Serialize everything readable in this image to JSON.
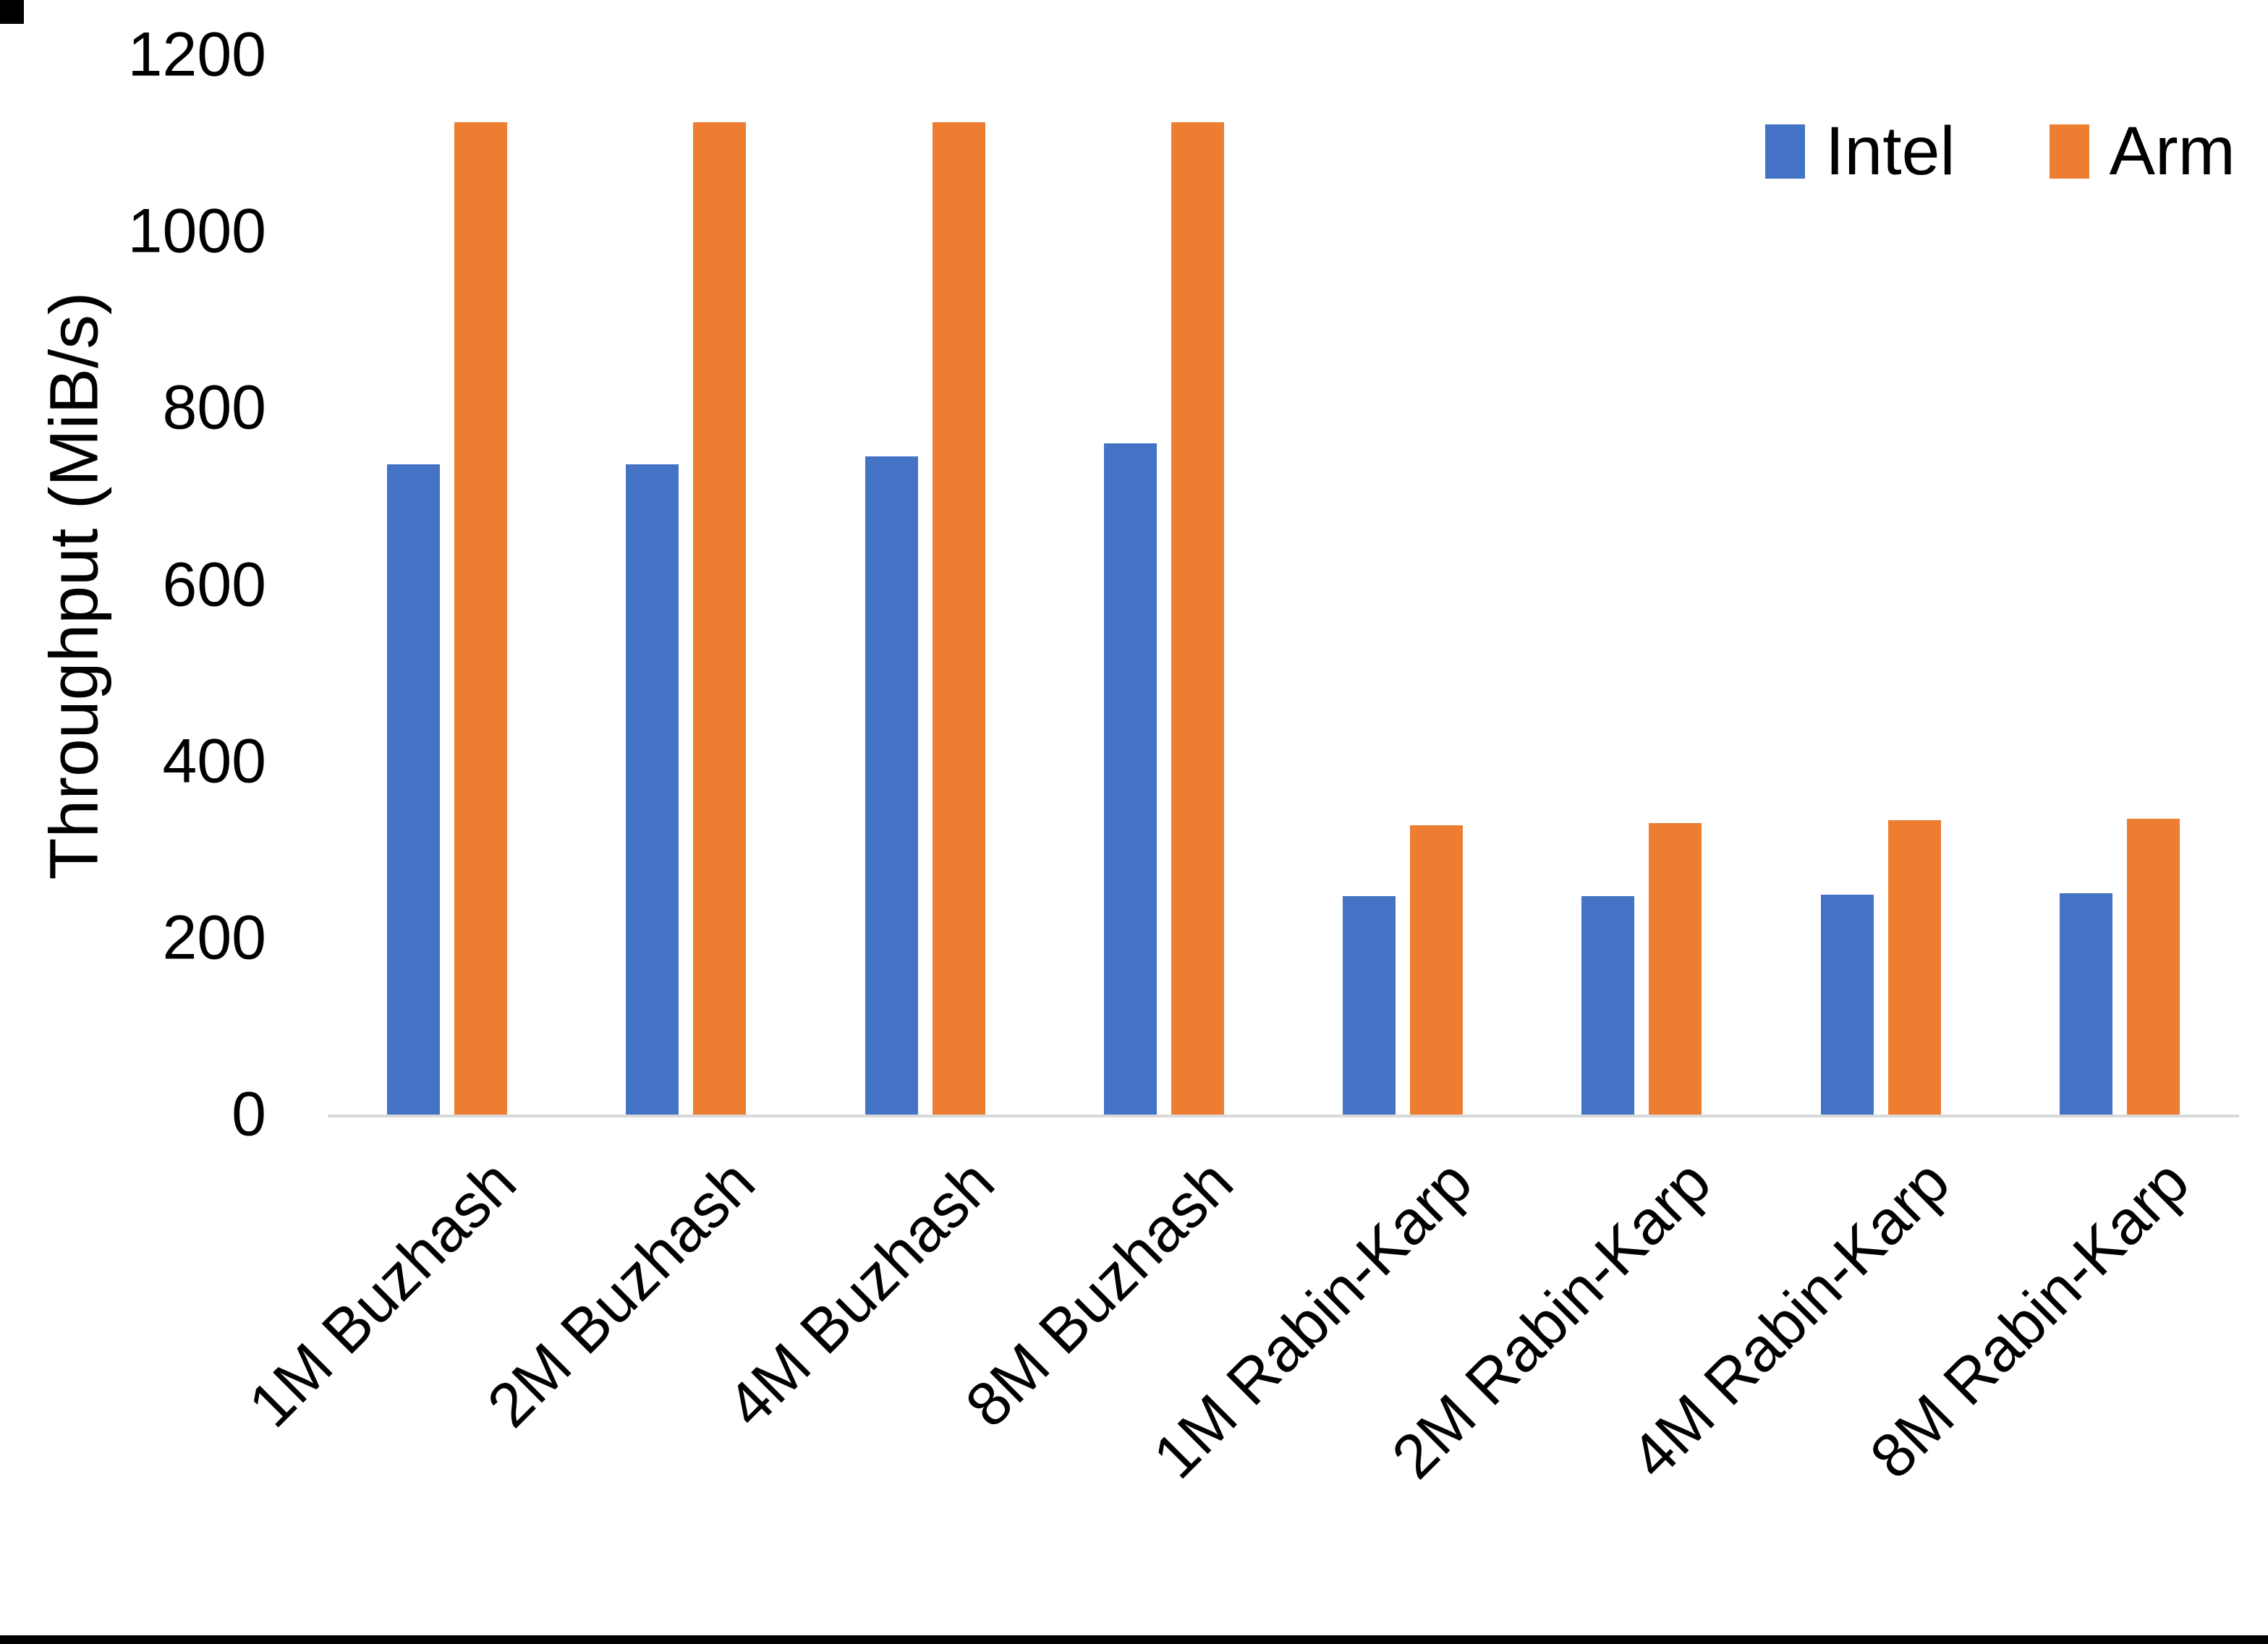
{
  "chart_data": {
    "type": "bar",
    "title": "",
    "xlabel": "",
    "ylabel": "Throughput (MiB/s)",
    "categories": [
      "1M Buzhash",
      "2M Buzhash",
      "4M Buzhash",
      "8M Buzhash",
      "1M Rabin-Karp",
      "2M Rabin-Karp",
      "4M Rabin-Karp",
      "8M Rabin-Karp"
    ],
    "series": [
      {
        "name": "Intel",
        "color": "#4472C4",
        "values": [
          736,
          736,
          745,
          760,
          247,
          247,
          249,
          251
        ]
      },
      {
        "name": "Arm",
        "color": "#ED7D31",
        "values": [
          1124,
          1124,
          1124,
          1124,
          328,
          330,
          333,
          335
        ]
      }
    ],
    "ylim": [
      0,
      1200
    ],
    "yticks": [
      0,
      200,
      400,
      600,
      800,
      1000,
      1200
    ],
    "grid": false,
    "legend_position": "top-right",
    "axis_line_color": "#D9D9D9",
    "background_color": "#FFFFFF"
  }
}
